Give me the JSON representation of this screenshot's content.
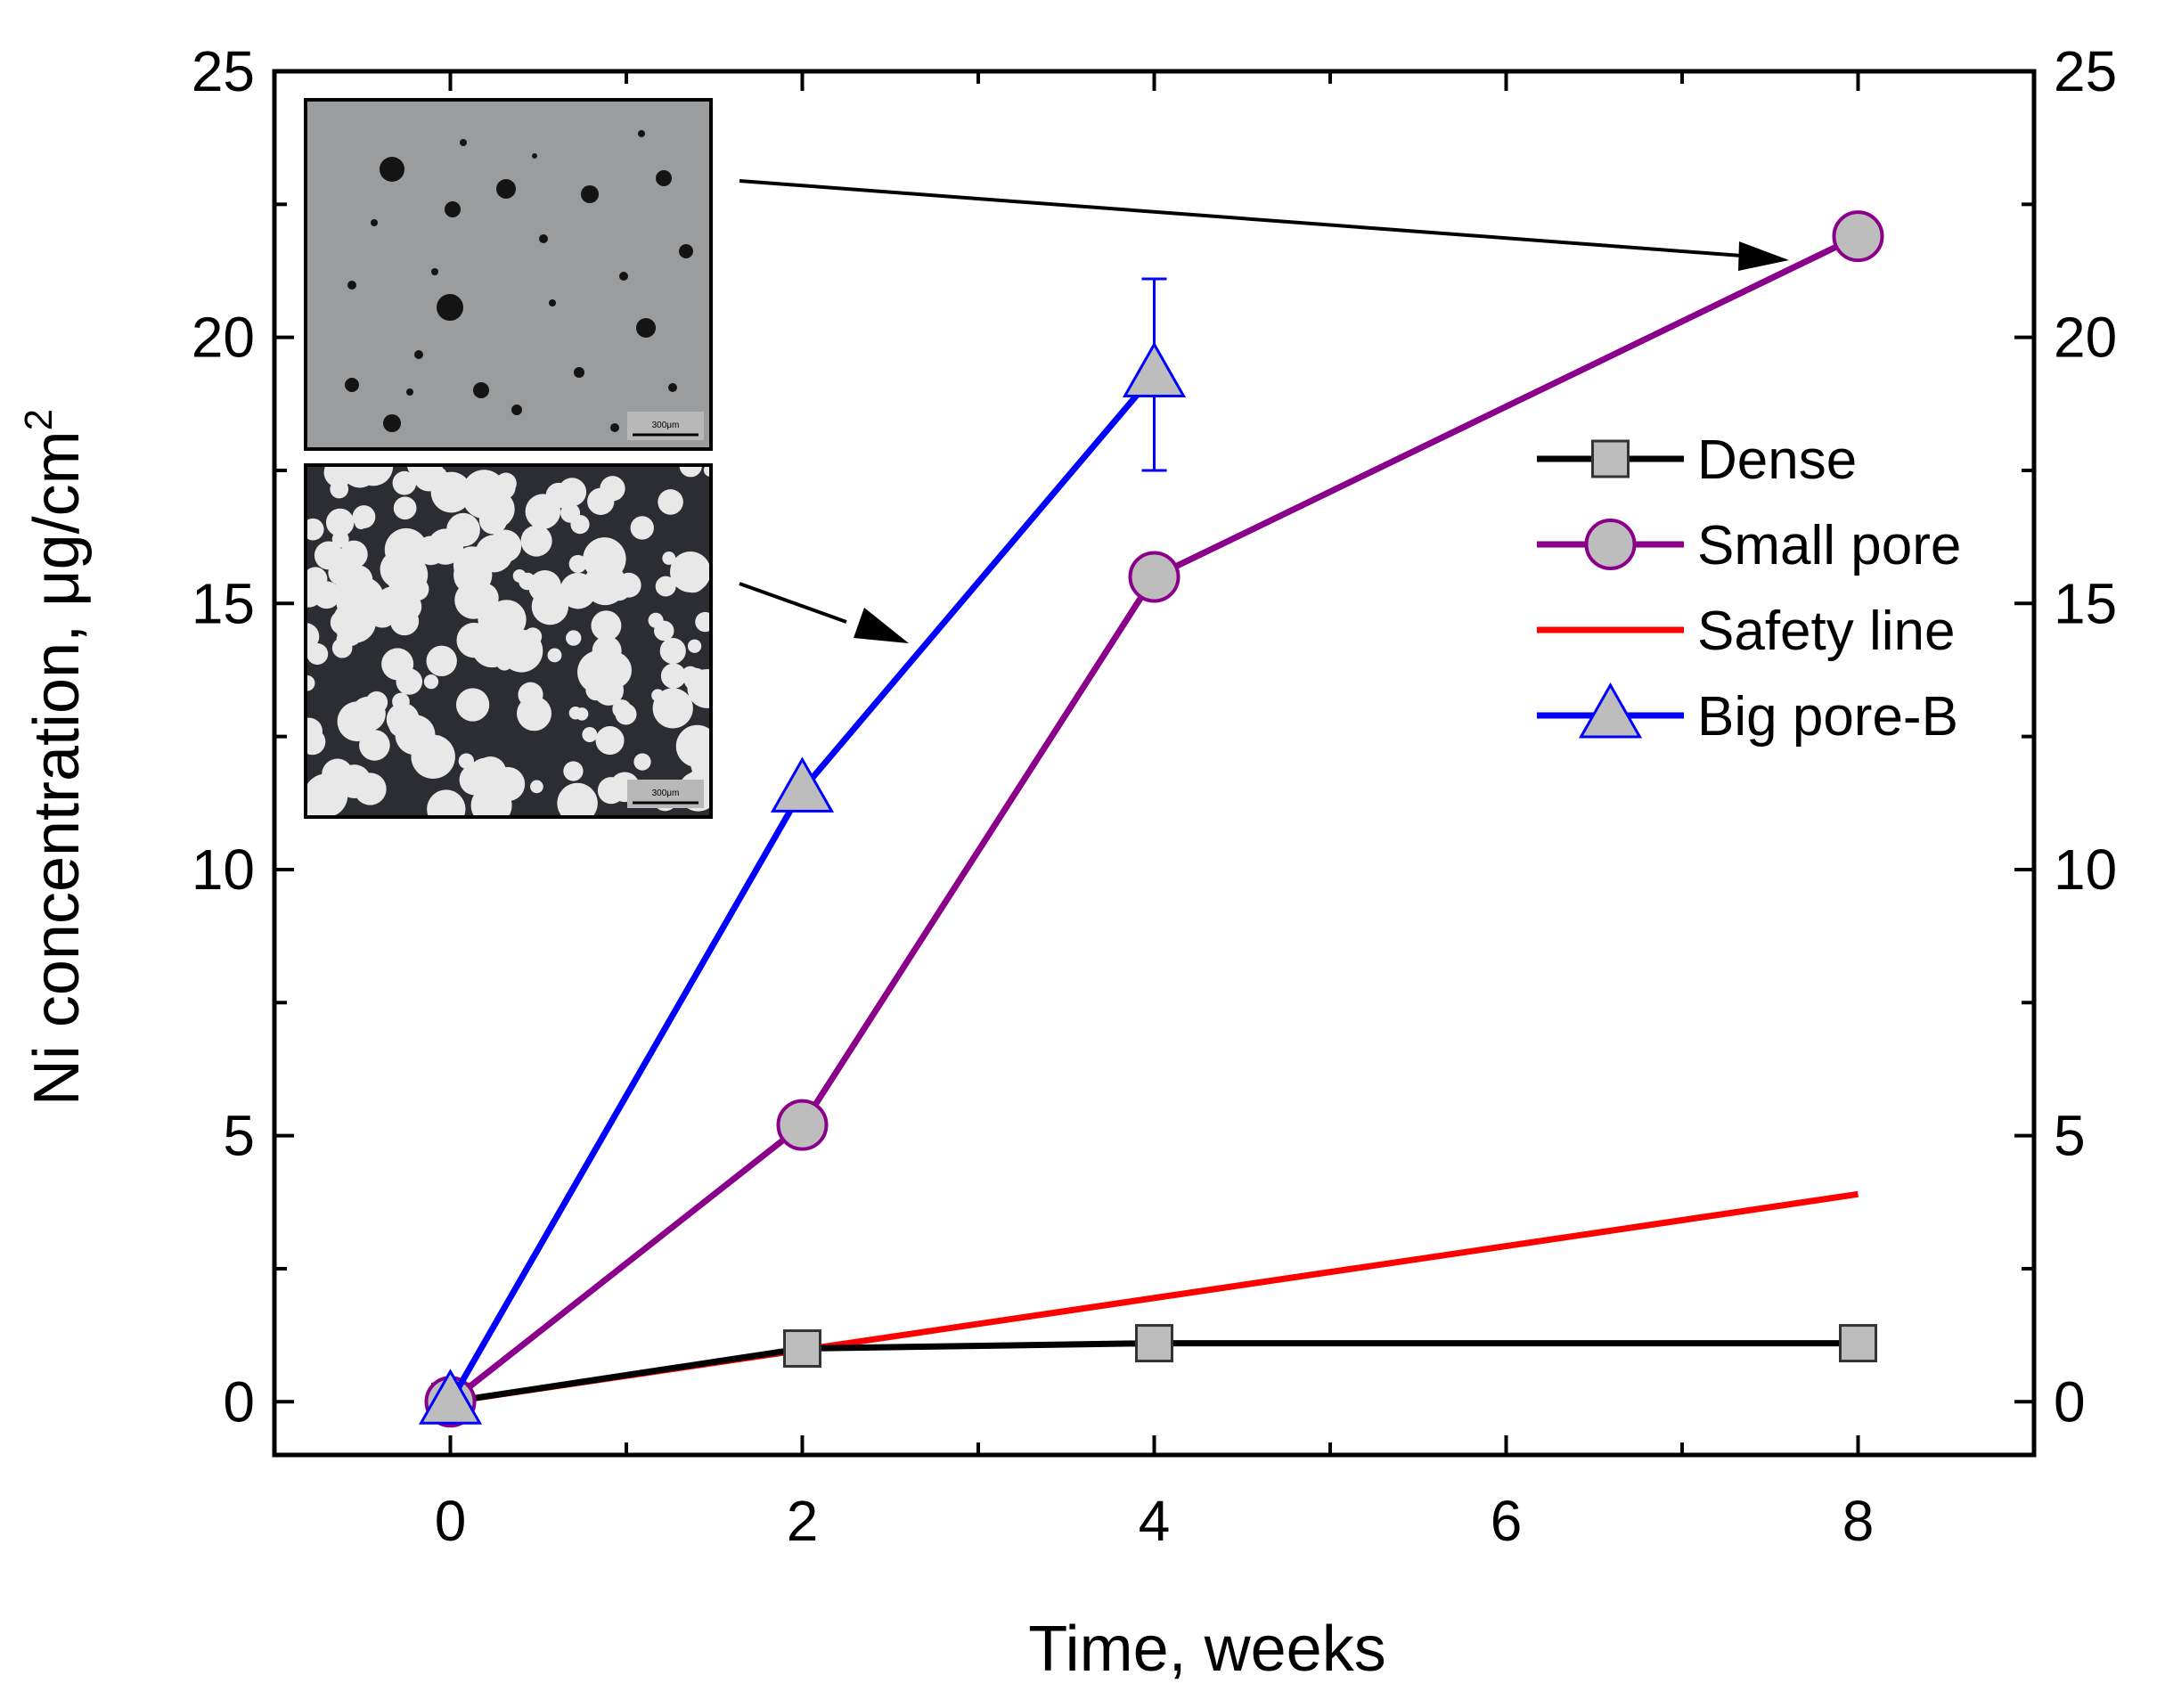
{
  "chart_data": {
    "type": "line",
    "xlabel": "Time, weeks",
    "ylabel": "Ni concentration, μg/cm",
    "ylabel_superscript": "2",
    "xlim": [
      -1,
      9
    ],
    "ylim": [
      -1,
      25
    ],
    "x_ticks": [
      "0",
      "2",
      "4",
      "6",
      "8"
    ],
    "y_ticks": [
      "0",
      "5",
      "10",
      "15",
      "20",
      "25"
    ],
    "right_axis_ticks": [
      "0",
      "5",
      "10",
      "15",
      "20",
      "25"
    ],
    "grid": false,
    "legend_position": "right",
    "series": [
      {
        "name": "Dense",
        "color": "#000000",
        "marker": "square",
        "x": [
          0,
          2,
          4,
          8
        ],
        "y": [
          0,
          1.0,
          1.1,
          1.1
        ]
      },
      {
        "name": "Small pore",
        "color": "#8B008B",
        "marker": "circle",
        "x": [
          0,
          2,
          4,
          8
        ],
        "y": [
          0,
          5.2,
          15.5,
          21.9
        ]
      },
      {
        "name": "Safety line",
        "color": "#FF0000",
        "marker": "none",
        "x": [
          0,
          8
        ],
        "y": [
          0,
          3.9
        ]
      },
      {
        "name": "Big pore-B",
        "color": "#0000FF",
        "marker": "triangle",
        "x": [
          0,
          2,
          4
        ],
        "y": [
          0,
          11.5,
          19.3
        ],
        "error_bars": [
          null,
          null,
          [
            17.5,
            21.1
          ]
        ]
      }
    ],
    "insets": [
      {
        "name": "small-pore-micrograph",
        "scale_bar": "300μm"
      },
      {
        "name": "big-pore-micrograph",
        "scale_bar": "300μm"
      }
    ]
  }
}
